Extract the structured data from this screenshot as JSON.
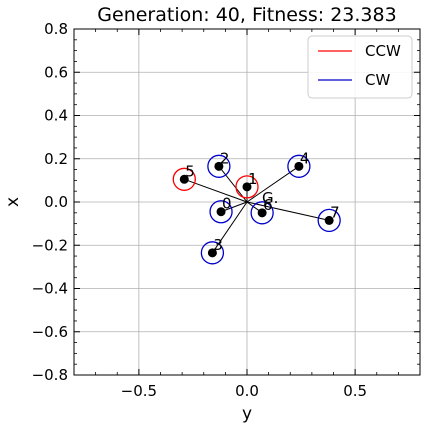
{
  "chart_data": {
    "type": "scatter",
    "title": "Generation: 40, Fitness: 23.383",
    "xlabel": "y",
    "ylabel": "x",
    "xlim": [
      -0.8,
      0.8
    ],
    "ylim": [
      -0.8,
      0.8
    ],
    "xticks": [
      -0.5,
      0.0,
      0.5
    ],
    "xtick_labels": [
      "−0.5",
      "0.0",
      "0.5"
    ],
    "yticks": [
      0.8,
      0.6,
      0.4,
      0.2,
      0.0,
      -0.2,
      -0.4,
      -0.6,
      -0.8
    ],
    "ytick_labels": [
      "0.8",
      "0.6",
      "0.4",
      "0.2",
      "0.0",
      "−0.2",
      "−0.4",
      "−0.6",
      "−0.8"
    ],
    "grid": true,
    "center_of_gravity": {
      "label": "G.",
      "y": 0.0,
      "x": 0.0
    },
    "legend": {
      "placement": "top-right",
      "entries": [
        {
          "label": "CCW",
          "color": "#ff0000"
        },
        {
          "label": "CW",
          "color": "#0000cc"
        }
      ]
    },
    "propellers": [
      {
        "id": "0",
        "y": -0.12,
        "x": -0.045,
        "spin": "CW"
      },
      {
        "id": "1",
        "y": 0.0,
        "x": 0.07,
        "spin": "CCW"
      },
      {
        "id": "2",
        "y": -0.13,
        "x": 0.165,
        "spin": "CW"
      },
      {
        "id": "3",
        "y": -0.16,
        "x": -0.235,
        "spin": "CW"
      },
      {
        "id": "4",
        "y": 0.24,
        "x": 0.165,
        "spin": "CW"
      },
      {
        "id": "5",
        "y": -0.29,
        "x": 0.105,
        "spin": "CCW"
      },
      {
        "id": "6",
        "y": 0.07,
        "x": -0.05,
        "spin": "CW"
      },
      {
        "id": "7",
        "y": 0.38,
        "x": -0.085,
        "spin": "CW"
      }
    ],
    "colors": {
      "ccw": "#ff0000",
      "cw": "#0000cc",
      "arm": "#000000",
      "motor": "#000000",
      "grid": "#b0b0b0"
    }
  }
}
